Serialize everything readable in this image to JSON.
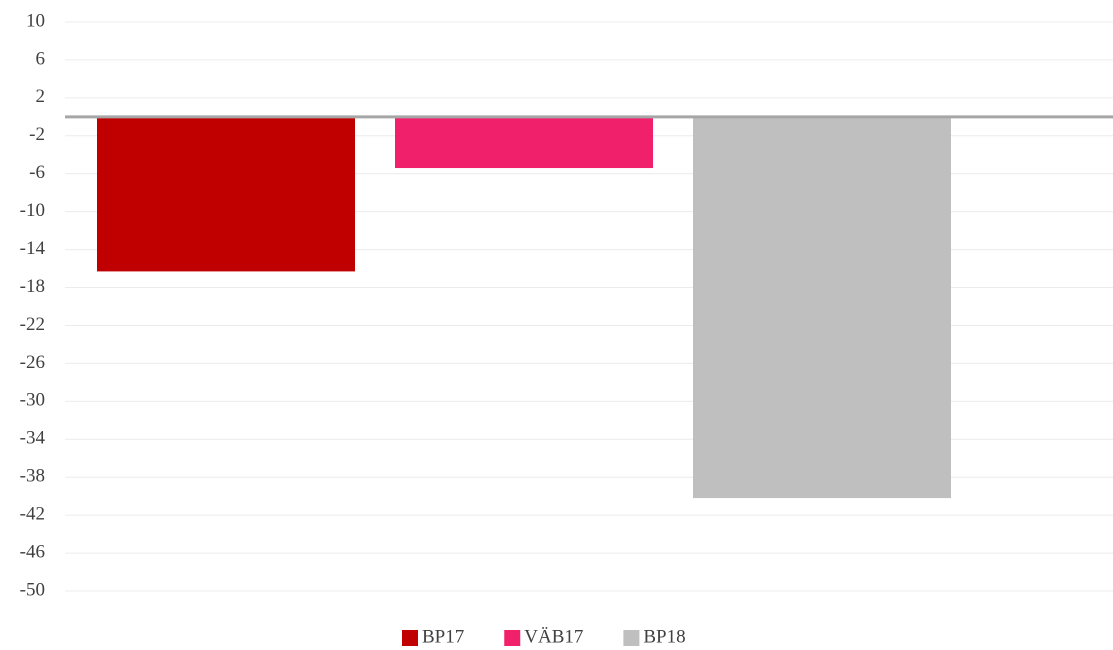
{
  "chart_data": {
    "type": "bar",
    "categories": [
      null
    ],
    "series": [
      {
        "name": "BP17",
        "color": "#c00000",
        "values": [
          -16.3
        ]
      },
      {
        "name": "VÄB17",
        "color": "#f0206a",
        "values": [
          -5.4
        ]
      },
      {
        "name": "BP18",
        "color": "#bfbfbf",
        "values": [
          -40.2
        ]
      }
    ],
    "ylim": [
      -50,
      10
    ],
    "yticks": [
      10,
      6,
      2,
      -2,
      -6,
      -10,
      -14,
      -18,
      -22,
      -26,
      -30,
      -34,
      -38,
      -42,
      -46,
      -50
    ],
    "grid": true,
    "legend": "bottom"
  }
}
